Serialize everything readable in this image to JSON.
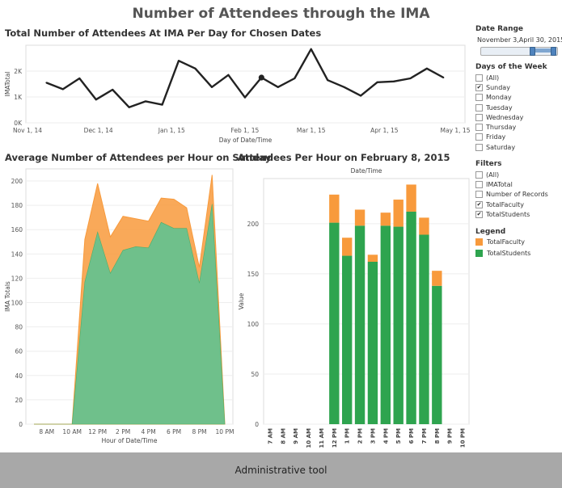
{
  "title": "Number of Attendees through the IMA",
  "colors": {
    "faculty": "#f89a3c",
    "students": "#2ea44f",
    "line": "#222222",
    "footer_bg": "#a8a8a8"
  },
  "sidebar": {
    "date_range": {
      "title": "Date Range",
      "start": "November 3,",
      "end": "April 30, 2015"
    },
    "days_of_week": {
      "title": "Days of the Week",
      "items": [
        {
          "label": "(All)",
          "checked": false
        },
        {
          "label": "Sunday",
          "checked": true
        },
        {
          "label": "Monday",
          "checked": false
        },
        {
          "label": "Tuesday",
          "checked": false
        },
        {
          "label": "Wednesday",
          "checked": false
        },
        {
          "label": "Thursday",
          "checked": false
        },
        {
          "label": "Friday",
          "checked": false
        },
        {
          "label": "Saturday",
          "checked": false
        }
      ]
    },
    "filters": {
      "title": "Filters",
      "items": [
        {
          "label": "(All)",
          "checked": false
        },
        {
          "label": "IMATotal",
          "checked": false
        },
        {
          "label": "Number of Records",
          "checked": false
        },
        {
          "label": "TotalFaculty",
          "checked": true
        },
        {
          "label": "TotalStudents",
          "checked": true
        }
      ]
    },
    "legend": {
      "title": "Legend",
      "items": [
        {
          "label": "TotalFaculty",
          "color": "#f89a3c"
        },
        {
          "label": "TotalStudents",
          "color": "#2ea44f"
        }
      ]
    }
  },
  "footer": {
    "text": "Administrative tool"
  },
  "chart_data": [
    {
      "type": "line",
      "title": "Total Number of Attendees At IMA Per Day for Chosen Dates",
      "xlabel": "Day of Date/Time",
      "ylabel": "IMATotal",
      "x_ticks": [
        "Nov 1, 14",
        "Dec 1, 14",
        "Jan 1, 15",
        "Feb 1, 15",
        "Mar 1, 15",
        "Apr 1, 15",
        "May 1, 15"
      ],
      "y_ticks": [
        "0K",
        "1K",
        "2K"
      ],
      "ylim": [
        0,
        3000
      ],
      "highlight": "2015-02-08",
      "series": [
        {
          "x": [
            "2014-11-09",
            "2014-11-16",
            "2014-11-23",
            "2014-11-30",
            "2014-12-07",
            "2014-12-14",
            "2014-12-21",
            "2014-12-28",
            "2015-01-04",
            "2015-01-11",
            "2015-01-18",
            "2015-01-25",
            "2015-02-01",
            "2015-02-08",
            "2015-02-15",
            "2015-02-22",
            "2015-03-01",
            "2015-03-08",
            "2015-03-15",
            "2015-03-22",
            "2015-03-29",
            "2015-04-05",
            "2015-04-12",
            "2015-04-19",
            "2015-04-26"
          ],
          "values": [
            1550,
            1300,
            1720,
            900,
            1280,
            600,
            830,
            700,
            2400,
            2100,
            1380,
            1850,
            980,
            1750,
            1380,
            1720,
            2850,
            1650,
            1380,
            1050,
            1570,
            1600,
            1720,
            2100,
            1750
          ]
        }
      ]
    },
    {
      "type": "area",
      "title": "Average Number of Attendees per Hour on Sunday",
      "xlabel": "Hour of Date/Time",
      "ylabel": "IMA Totals",
      "categories": [
        "7 AM",
        "8 AM",
        "9 AM",
        "10 AM",
        "11 AM",
        "12 PM",
        "1 PM",
        "2 PM",
        "3 PM",
        "4 PM",
        "5 PM",
        "6 PM",
        "7 PM",
        "8 PM",
        "9 PM",
        "10 PM"
      ],
      "x_ticks": [
        "8 AM",
        "10 AM",
        "12 PM",
        "2 PM",
        "4 PM",
        "6 PM",
        "8 PM",
        "10 PM"
      ],
      "ylim": [
        0,
        210
      ],
      "y_ticks": [
        0,
        20,
        40,
        60,
        80,
        100,
        120,
        140,
        160,
        180,
        200
      ],
      "stacked": true,
      "series": [
        {
          "name": "TotalStudents",
          "values": [
            0,
            0,
            0,
            0,
            117,
            158,
            124,
            143,
            146,
            145,
            166,
            161,
            161,
            116,
            181,
            0
          ]
        },
        {
          "name": "TotalFaculty",
          "values": [
            0,
            0,
            0,
            0,
            35,
            40,
            30,
            28,
            23,
            22,
            20,
            24,
            17,
            13,
            24,
            0
          ]
        }
      ]
    },
    {
      "type": "bar",
      "title": "Attendees Per Hour on February 8, 2015",
      "xlabel": "Date/Time",
      "ylabel": "Value",
      "categories": [
        "7 AM",
        "8 AM",
        "9 AM",
        "10 AM",
        "11 AM",
        "12 PM",
        "1 PM",
        "2 PM",
        "3 PM",
        "4 PM",
        "5 PM",
        "6 PM",
        "7 PM",
        "8 PM",
        "9 PM",
        "10 PM"
      ],
      "ylim": [
        0,
        245
      ],
      "y_ticks": [
        0,
        50,
        100,
        150,
        200
      ],
      "stacked": true,
      "series": [
        {
          "name": "TotalStudents",
          "values": [
            0,
            0,
            0,
            0,
            0,
            201,
            168,
            198,
            162,
            198,
            197,
            212,
            189,
            138,
            0,
            0
          ]
        },
        {
          "name": "TotalFaculty",
          "values": [
            0,
            0,
            0,
            0,
            0,
            28,
            18,
            16,
            7,
            13,
            27,
            27,
            17,
            15,
            0,
            0
          ]
        }
      ]
    }
  ]
}
